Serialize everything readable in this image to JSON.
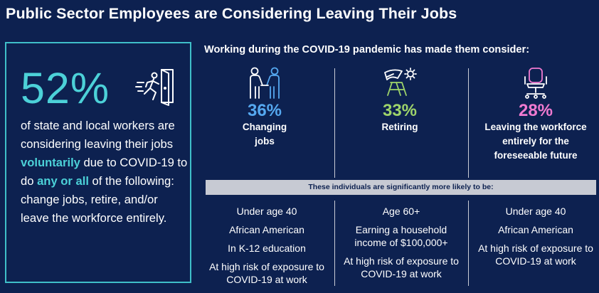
{
  "title": "Public Sector Employees are Considering Leaving Their Jobs",
  "left": {
    "big_percent": "52%",
    "text_1": "of state and local workers are considering leaving their jobs ",
    "hl_1": "voluntarily",
    "text_2": " due to COVID-19 to do ",
    "hl_2": "any or all",
    "text_3": " of the following: change jobs, retire, and/or leave the workforce entirely."
  },
  "subtitle": "Working during the COVID-19 pandemic has made them consider:",
  "columns": [
    {
      "percent": "36%",
      "label_1": "Changing",
      "label_2": "jobs",
      "label_3": "",
      "color": "#55a8f0",
      "icon": "handshake-icon"
    },
    {
      "percent": "33%",
      "label_1": "Retiring",
      "label_2": "",
      "label_3": "",
      "color": "#9ed46a",
      "icon": "beach-chair-icon"
    },
    {
      "percent": "28%",
      "label_1": "Leaving the workforce",
      "label_2": "entirely for the",
      "label_3": "foreseeable future",
      "color": "#f07ad0",
      "icon": "office-chair-icon"
    }
  ],
  "banner": "These individuals are significantly more likely to be:",
  "lists": [
    {
      "items": [
        "Under age 40",
        "African American",
        "In K-12 education",
        "At high risk of exposure to COVID-19 at work"
      ]
    },
    {
      "items": [
        "Age 60+",
        "Earning a household income of $100,000+",
        "At high risk of exposure to COVID-19 at work"
      ]
    },
    {
      "items": [
        "Under age 40",
        "African American",
        "At high risk of exposure to COVID-19 at work"
      ]
    }
  ],
  "colors": {
    "background": "#0d2150",
    "teal": "#4cd1d8",
    "banner": "#c7cad3"
  }
}
